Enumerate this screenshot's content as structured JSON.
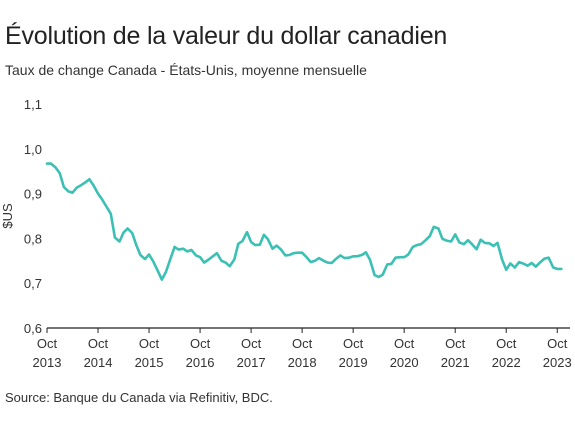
{
  "header": {
    "title": "Évolution de la valeur du dollar canadien",
    "subtitle": "Taux de change Canada - États-Unis, moyenne mensuelle"
  },
  "footer": {
    "source": "Source: Banque du Canada via Refinitiv, BDC."
  },
  "colors": {
    "line": "#3cc0b4",
    "axis": "#222222",
    "text": "#333333"
  },
  "chart_data": {
    "type": "line",
    "title": "Évolution de la valeur du dollar canadien",
    "subtitle": "Taux de change Canada - États-Unis, moyenne mensuelle",
    "ylabel": "$US",
    "xlabel": "",
    "ylim": [
      0.6,
      1.1
    ],
    "yticks": [
      0.6,
      0.7,
      0.8,
      0.9,
      1.0,
      1.1
    ],
    "ytick_labels": [
      "0,6",
      "0,7",
      "0,8",
      "0,9",
      "1,0",
      "1,1"
    ],
    "xticks": [
      {
        "month": "Oct",
        "year": "2013",
        "t": 2013.75
      },
      {
        "month": "Oct",
        "year": "2014",
        "t": 2014.75
      },
      {
        "month": "Oct",
        "year": "2015",
        "t": 2015.75
      },
      {
        "month": "Oct",
        "year": "2016",
        "t": 2016.75
      },
      {
        "month": "Oct",
        "year": "2017",
        "t": 2017.75
      },
      {
        "month": "Oct",
        "year": "2018",
        "t": 2018.75
      },
      {
        "month": "Oct",
        "year": "2019",
        "t": 2019.75
      },
      {
        "month": "Oct",
        "year": "2020",
        "t": 2020.75
      },
      {
        "month": "Oct",
        "year": "2021",
        "t": 2021.75
      },
      {
        "month": "Oct",
        "year": "2022",
        "t": 2022.75
      },
      {
        "month": "Oct",
        "year": "2023",
        "t": 2023.75
      }
    ],
    "xlim": [
      2013.75,
      2024.0
    ],
    "grid": false,
    "legend": "none",
    "series": [
      {
        "x": [
          2013.75,
          2013.83,
          2013.92,
          2014.0,
          2014.08,
          2014.17,
          2014.25,
          2014.33,
          2014.42,
          2014.5,
          2014.58,
          2014.67,
          2014.75,
          2014.83,
          2014.92,
          2015.0,
          2015.08,
          2015.17,
          2015.25,
          2015.33,
          2015.42,
          2015.5,
          2015.58,
          2015.67,
          2015.75,
          2015.83,
          2015.92,
          2016.0,
          2016.08,
          2016.17,
          2016.25,
          2016.33,
          2016.42,
          2016.5,
          2016.58,
          2016.67,
          2016.75,
          2016.83,
          2016.92,
          2017.0,
          2017.08,
          2017.17,
          2017.25,
          2017.33,
          2017.42,
          2017.5,
          2017.58,
          2017.67,
          2017.75,
          2017.83,
          2017.92,
          2018.0,
          2018.08,
          2018.17,
          2018.25,
          2018.33,
          2018.42,
          2018.5,
          2018.58,
          2018.67,
          2018.75,
          2018.83,
          2018.92,
          2019.0,
          2019.08,
          2019.17,
          2019.25,
          2019.33,
          2019.42,
          2019.5,
          2019.58,
          2019.67,
          2019.75,
          2019.83,
          2019.92,
          2020.0,
          2020.08,
          2020.17,
          2020.25,
          2020.33,
          2020.42,
          2020.5,
          2020.58,
          2020.67,
          2020.75,
          2020.83,
          2020.92,
          2021.0,
          2021.08,
          2021.17,
          2021.25,
          2021.33,
          2021.42,
          2021.5,
          2021.58,
          2021.67,
          2021.75,
          2021.83,
          2021.92,
          2022.0,
          2022.08,
          2022.17,
          2022.25,
          2022.33,
          2022.42,
          2022.5,
          2022.58,
          2022.67,
          2022.75,
          2022.83,
          2022.92,
          2023.0,
          2023.08,
          2023.17,
          2023.25,
          2023.33,
          2023.42,
          2023.5,
          2023.58,
          2023.67,
          2023.75,
          2023.83
        ],
        "values": [
          0.967,
          0.967,
          0.958,
          0.945,
          0.915,
          0.905,
          0.902,
          0.913,
          0.919,
          0.925,
          0.932,
          0.917,
          0.9,
          0.887,
          0.87,
          0.855,
          0.802,
          0.793,
          0.813,
          0.822,
          0.812,
          0.785,
          0.763,
          0.754,
          0.764,
          0.749,
          0.728,
          0.708,
          0.725,
          0.755,
          0.781,
          0.775,
          0.777,
          0.771,
          0.774,
          0.762,
          0.758,
          0.746,
          0.753,
          0.76,
          0.767,
          0.75,
          0.746,
          0.738,
          0.753,
          0.788,
          0.794,
          0.814,
          0.792,
          0.785,
          0.786,
          0.808,
          0.798,
          0.777,
          0.784,
          0.776,
          0.762,
          0.763,
          0.767,
          0.768,
          0.768,
          0.759,
          0.747,
          0.75,
          0.756,
          0.75,
          0.746,
          0.745,
          0.755,
          0.762,
          0.756,
          0.757,
          0.76,
          0.76,
          0.763,
          0.769,
          0.752,
          0.718,
          0.714,
          0.719,
          0.742,
          0.743,
          0.757,
          0.758,
          0.758,
          0.764,
          0.781,
          0.785,
          0.787,
          0.796,
          0.805,
          0.826,
          0.822,
          0.799,
          0.795,
          0.793,
          0.809,
          0.791,
          0.787,
          0.796,
          0.787,
          0.776,
          0.797,
          0.79,
          0.789,
          0.783,
          0.79,
          0.753,
          0.73,
          0.744,
          0.735,
          0.747,
          0.744,
          0.739,
          0.745,
          0.737,
          0.747,
          0.755,
          0.757,
          0.735,
          0.732,
          0.732
        ]
      }
    ]
  }
}
